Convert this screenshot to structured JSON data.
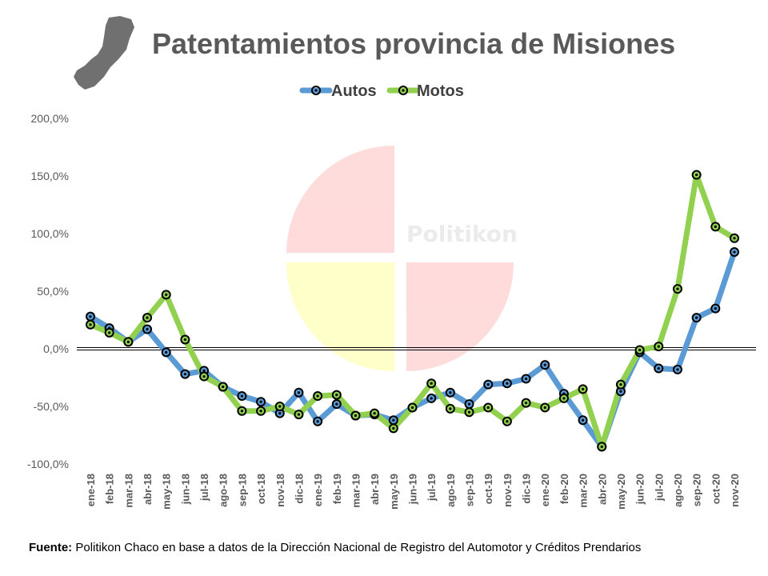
{
  "title": "Patentamientos provincia de Misiones",
  "watermark": "Politikon",
  "source": {
    "label": "Fuente:",
    "text": "Politikon Chaco en base a datos de la Dirección Nacional de Registro del Automotor  y Créditos Prendarios"
  },
  "colors": {
    "autos": "#5b9bd5",
    "motos": "#92d050",
    "marker": "#000000",
    "axis": "#000000",
    "text": "#595959"
  },
  "chart_data": {
    "type": "line",
    "title": "Patentamientos provincia de Misiones",
    "legend_position": "top",
    "y_ticks": [
      "200,0%",
      "150,0%",
      "100,0%",
      "50,0%",
      "0,0%",
      "-50,0%",
      "-100,0%"
    ],
    "ylim": [
      -100,
      200
    ],
    "grid": false,
    "categories": [
      "ene-18",
      "feb-18",
      "mar-18",
      "abr-18",
      "may-18",
      "jun-18",
      "jul-18",
      "ago-18",
      "sep-18",
      "oct-18",
      "nov-18",
      "dic-18",
      "ene-19",
      "feb-19",
      "mar-19",
      "abr-19",
      "may-19",
      "jun-19",
      "jul-19",
      "ago-19",
      "sep-19",
      "oct-19",
      "nov-19",
      "dic-19",
      "ene-20",
      "feb-20",
      "mar-20",
      "abr-20",
      "may-20",
      "jun-20",
      "jul-20",
      "ago-20",
      "sep-20",
      "oct-20",
      "nov-20"
    ],
    "series": [
      {
        "name": "Autos",
        "values": [
          28,
          18,
          6,
          17,
          -3,
          -22,
          -19,
          -33,
          -41,
          -46,
          -56,
          -38,
          -63,
          -48,
          -58,
          -57,
          -62,
          -51,
          -43,
          -38,
          -48,
          -31,
          -30,
          -26,
          -14,
          -39,
          -62,
          -85,
          -37,
          -3,
          -17,
          -18,
          27,
          35,
          84
        ]
      },
      {
        "name": "Motos",
        "values": [
          21,
          14,
          6,
          27,
          47,
          8,
          -24,
          -33,
          -54,
          -54,
          -50,
          -57,
          -41,
          -40,
          -58,
          -56,
          -69,
          -51,
          -30,
          -52,
          -55,
          -51,
          -63,
          -47,
          -51,
          -43,
          -35,
          -85,
          -31,
          -1,
          2,
          52,
          151,
          106,
          96
        ]
      }
    ]
  }
}
